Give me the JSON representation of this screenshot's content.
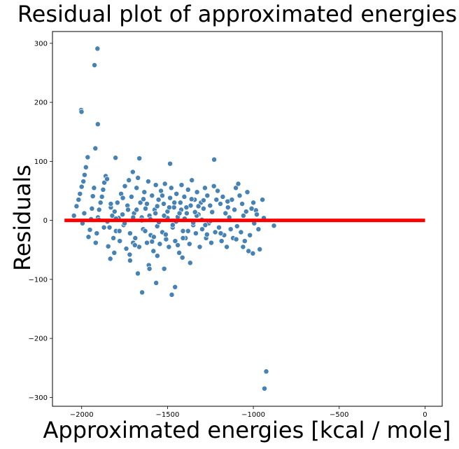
{
  "chart_data": {
    "type": "scatter",
    "title": "Residual plot of approximated energies",
    "xlabel": "Approximated energies [kcal / mole]",
    "ylabel": "Residuals",
    "xlim": [
      -2170,
      100
    ],
    "ylim": [
      -315,
      320
    ],
    "xticks": [
      -2000,
      -1500,
      -1000,
      -500,
      0
    ],
    "xtick_labels": [
      "−2000",
      "−1500",
      "−1000",
      "−500",
      "0"
    ],
    "yticks": [
      -300,
      -200,
      -100,
      0,
      100,
      200,
      300
    ],
    "ytick_labels": [
      "−300",
      "−200",
      "−100",
      "0",
      "100",
      "200",
      "300"
    ],
    "grid": false,
    "point_color": "#4682b4",
    "point_edge_color": "#ffffff",
    "reference_line": {
      "y": 0,
      "x_start": -2100,
      "x_end": 0,
      "color": "#ff0000"
    },
    "series": [
      {
        "points": [
          [
            -1908,
            291
          ],
          [
            -1925,
            263
          ],
          [
            -2003,
            187
          ],
          [
            -2001,
            184
          ],
          [
            -1906,
            163
          ],
          [
            -1920,
            122
          ],
          [
            -1965,
            107
          ],
          [
            -1803,
            106
          ],
          [
            -1664,
            105
          ],
          [
            -1485,
            96
          ],
          [
            -1228,
            103
          ],
          [
            -925,
            -256
          ],
          [
            -935,
            -285
          ],
          [
            -1456,
            -113
          ],
          [
            -1475,
            -126
          ],
          [
            -1648,
            -122
          ],
          [
            -1566,
            -106
          ],
          [
            -1673,
            -90
          ],
          [
            -1609,
            -76
          ],
          [
            -1519,
            -82
          ],
          [
            -1833,
            -65
          ],
          [
            -1413,
            -63
          ],
          [
            -1368,
            -72
          ],
          [
            -1003,
            -56
          ],
          [
            -1028,
            -52
          ],
          [
            -963,
            -49
          ],
          [
            -947,
            35
          ],
          [
            -939,
            4
          ],
          [
            -985,
            17
          ],
          [
            -880,
            -9
          ],
          [
            -1810,
            -55
          ],
          [
            -1718,
            -68
          ],
          [
            -1559,
            -60
          ],
          [
            -1605,
            -82
          ],
          [
            -1700,
            -38
          ],
          [
            -2045,
            8
          ],
          [
            -2030,
            24
          ],
          [
            -2018,
            35
          ],
          [
            -2010,
            45
          ],
          [
            -2000,
            57
          ],
          [
            -1990,
            66
          ],
          [
            -1983,
            77
          ],
          [
            -1975,
            90
          ],
          [
            -1995,
            -5
          ],
          [
            -1985,
            12
          ],
          [
            -1960,
            -28
          ],
          [
            -1952,
            -16
          ],
          [
            -1945,
            2
          ],
          [
            -1940,
            20
          ],
          [
            -1935,
            41
          ],
          [
            -1928,
            55
          ],
          [
            -1918,
            -38
          ],
          [
            -1912,
            -22
          ],
          [
            -1905,
            5
          ],
          [
            -1898,
            18
          ],
          [
            -1890,
            30
          ],
          [
            -1882,
            40
          ],
          [
            -1875,
            52
          ],
          [
            -1868,
            64
          ],
          [
            -1860,
            75
          ],
          [
            -1852,
            70
          ],
          [
            -1845,
            -44
          ],
          [
            -1838,
            -12
          ],
          [
            -1830,
            22
          ],
          [
            -1822,
            8
          ],
          [
            -1815,
            -30
          ],
          [
            -1808,
            15
          ],
          [
            -1800,
            -18
          ],
          [
            -1792,
            30
          ],
          [
            -1785,
            4
          ],
          [
            -1778,
            -35
          ],
          [
            -1770,
            45
          ],
          [
            -1762,
            10
          ],
          [
            -1755,
            -8
          ],
          [
            -1748,
            58
          ],
          [
            -1740,
            -48
          ],
          [
            -1733,
            25
          ],
          [
            -1725,
            68
          ],
          [
            -1718,
            -22
          ],
          [
            -1710,
            40
          ],
          [
            -1702,
            82
          ],
          [
            -1695,
            12
          ],
          [
            -1688,
            -30
          ],
          [
            -1680,
            55
          ],
          [
            -1672,
            72
          ],
          [
            -1665,
            -45
          ],
          [
            -1658,
            30
          ],
          [
            -1650,
            5
          ],
          [
            -1642,
            -15
          ],
          [
            -1635,
            48
          ],
          [
            -1628,
            20
          ],
          [
            -1620,
            -38
          ],
          [
            -1612,
            66
          ],
          [
            -1605,
            8
          ],
          [
            -1598,
            -25
          ],
          [
            -1590,
            42
          ],
          [
            -1582,
            -52
          ],
          [
            -1575,
            18
          ],
          [
            -1568,
            60
          ],
          [
            -1560,
            -10
          ],
          [
            -1552,
            35
          ],
          [
            -1545,
            -40
          ],
          [
            -1538,
            50
          ],
          [
            -1530,
            -20
          ],
          [
            -1522,
            28
          ],
          [
            -1515,
            62
          ],
          [
            -1508,
            -32
          ],
          [
            -1500,
            15
          ],
          [
            -1492,
            -45
          ],
          [
            -1485,
            38
          ],
          [
            -1478,
            55
          ],
          [
            -1470,
            -12
          ],
          [
            -1462,
            22
          ],
          [
            -1455,
            -35
          ],
          [
            -1448,
            45
          ],
          [
            -1440,
            6
          ],
          [
            -1432,
            -55
          ],
          [
            -1425,
            30
          ],
          [
            -1418,
            60
          ],
          [
            -1410,
            -18
          ],
          [
            -1402,
            40
          ],
          [
            -1395,
            -30
          ],
          [
            -1388,
            12
          ],
          [
            -1380,
            52
          ],
          [
            -1372,
            -40
          ],
          [
            -1365,
            25
          ],
          [
            -1358,
            68
          ],
          [
            -1350,
            -8
          ],
          [
            -1342,
            35
          ],
          [
            -1335,
            -22
          ],
          [
            -1328,
            48
          ],
          [
            -1320,
            10
          ],
          [
            -1312,
            -45
          ],
          [
            -1305,
            30
          ],
          [
            -1298,
            -15
          ],
          [
            -1290,
            20
          ],
          [
            -1282,
            55
          ],
          [
            -1275,
            -30
          ],
          [
            -1268,
            42
          ],
          [
            -1260,
            -5
          ],
          [
            -1252,
            25
          ],
          [
            -1245,
            -38
          ],
          [
            -1238,
            15
          ],
          [
            -1230,
            58
          ],
          [
            -1222,
            -20
          ],
          [
            -1215,
            35
          ],
          [
            -1208,
            50
          ],
          [
            -1200,
            -12
          ],
          [
            -1192,
            28
          ],
          [
            -1185,
            -35
          ],
          [
            -1178,
            40
          ],
          [
            -1170,
            -25
          ],
          [
            -1162,
            12
          ],
          [
            -1155,
            -45
          ],
          [
            -1148,
            22
          ],
          [
            -1140,
            5
          ],
          [
            -1132,
            -15
          ],
          [
            -1125,
            35
          ],
          [
            -1118,
            -30
          ],
          [
            -1110,
            18
          ],
          [
            -1102,
            55
          ],
          [
            -1095,
            -10
          ],
          [
            -1088,
            62
          ],
          [
            -1080,
            42
          ],
          [
            -1072,
            -20
          ],
          [
            -1065,
            28
          ],
          [
            -1058,
            8
          ],
          [
            -1050,
            -35
          ],
          [
            -1042,
            15
          ],
          [
            -1035,
            48
          ],
          [
            -1020,
            -25
          ],
          [
            -1010,
            20
          ],
          [
            -995,
            -5
          ],
          [
            -980,
            10
          ],
          [
            -970,
            -15
          ],
          [
            -1650,
            0
          ],
          [
            -1600,
            2
          ],
          [
            -1550,
            -3
          ],
          [
            -1500,
            4
          ],
          [
            -1450,
            -2
          ],
          [
            -1400,
            3
          ],
          [
            -1350,
            -4
          ],
          [
            -1300,
            1
          ],
          [
            -1250,
            -1
          ],
          [
            -1700,
            5
          ],
          [
            -1750,
            -5
          ],
          [
            -1800,
            3
          ],
          [
            -1850,
            -2
          ],
          [
            -1900,
            1
          ],
          [
            -1620,
            28
          ],
          [
            -1580,
            -28
          ],
          [
            -1520,
            8
          ],
          [
            -1470,
            -8
          ],
          [
            -1420,
            18
          ],
          [
            -1380,
            -18
          ],
          [
            -1330,
            8
          ],
          [
            -1280,
            -8
          ],
          [
            -1530,
            42
          ],
          [
            -1440,
            -42
          ],
          [
            -1360,
            36
          ],
          [
            -1690,
            -42
          ],
          [
            -1640,
            36
          ],
          [
            -1590,
            -36
          ],
          [
            -1560,
            24
          ],
          [
            -1510,
            -24
          ],
          [
            -1460,
            30
          ],
          [
            -1410,
            -30
          ],
          [
            -1320,
            24
          ],
          [
            -1270,
            -24
          ],
          [
            -1730,
            18
          ],
          [
            -1780,
            -18
          ],
          [
            -1830,
            28
          ],
          [
            -1870,
            -12
          ],
          [
            -1760,
            38
          ],
          [
            -1720,
            -58
          ],
          [
            -1680,
            18
          ],
          [
            -1630,
            -18
          ],
          [
            -1570,
            12
          ],
          [
            -1490,
            22
          ],
          [
            -1430,
            12
          ],
          [
            -1390,
            22
          ],
          [
            -1340,
            14
          ],
          [
            -1290,
            34
          ],
          [
            -1240,
            14
          ],
          [
            -1190,
            -22
          ],
          [
            -1150,
            32
          ],
          [
            -1100,
            -32
          ],
          [
            -1060,
            -45
          ],
          [
            -1000,
            30
          ]
        ]
      }
    ]
  }
}
